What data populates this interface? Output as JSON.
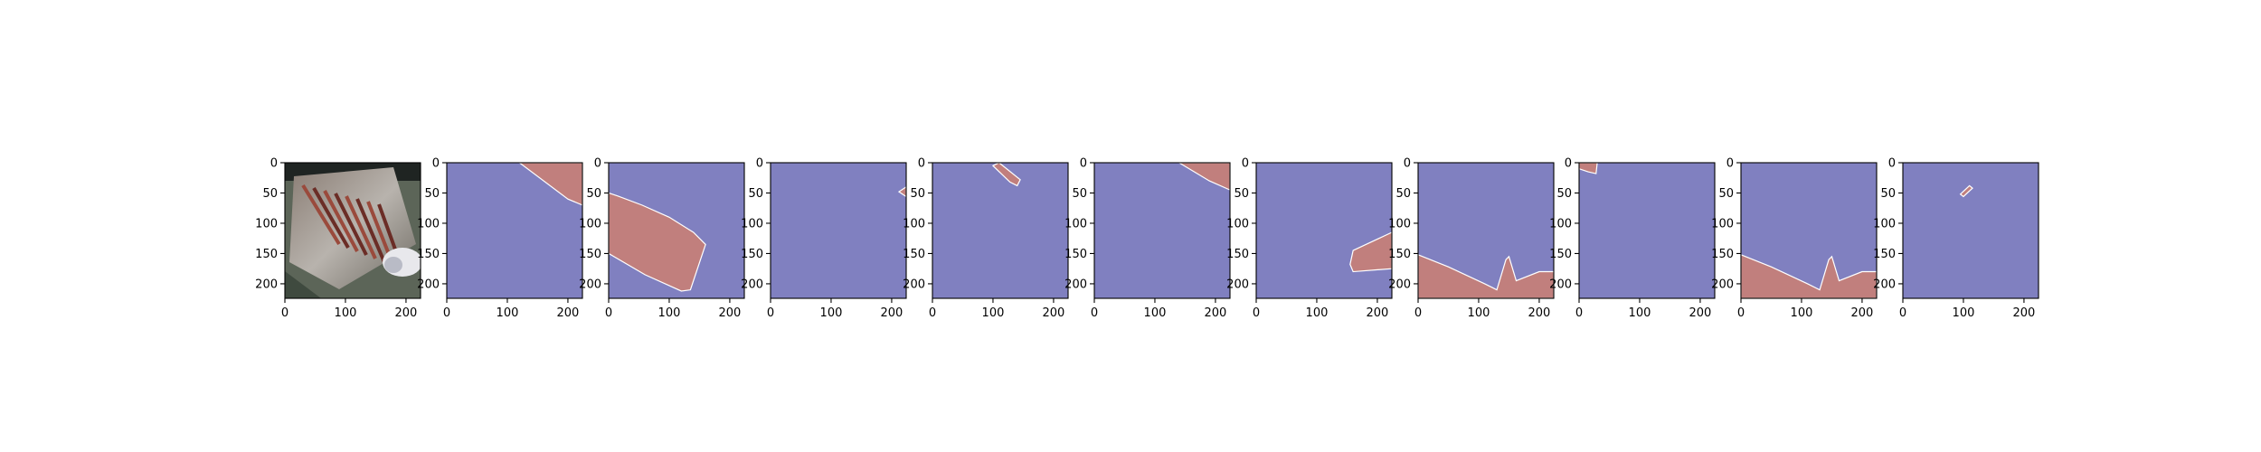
{
  "chart_data": {
    "type": "image-grid",
    "extent": [
      0,
      224
    ],
    "xticks": [
      "0",
      "100",
      "200"
    ],
    "yticks": [
      "0",
      "50",
      "100",
      "150",
      "200"
    ],
    "colors": {
      "background_class": "#8080c0",
      "foreground_class": "#c17f7d",
      "boundary": "#ffffff"
    },
    "panels": [
      {
        "kind": "photo",
        "content": "crushed metal tray with debris and white cup"
      },
      {
        "kind": "mask",
        "regions": [
          [
            [
              120,
              0
            ],
            [
              224,
              0
            ],
            [
              224,
              70
            ],
            [
              200,
              60
            ]
          ]
        ]
      },
      {
        "kind": "mask",
        "regions": [
          [
            [
              0,
              50
            ],
            [
              15,
              55
            ],
            [
              55,
              70
            ],
            [
              100,
              90
            ],
            [
              140,
              115
            ],
            [
              160,
              135
            ],
            [
              150,
              165
            ],
            [
              135,
              210
            ],
            [
              120,
              212
            ],
            [
              60,
              185
            ],
            [
              0,
              150
            ]
          ]
        ]
      },
      {
        "kind": "mask",
        "regions": [
          [
            [
              212,
              48
            ],
            [
              224,
              40
            ],
            [
              224,
              56
            ]
          ]
        ]
      },
      {
        "kind": "mask",
        "regions": [
          [
            [
              100,
              5
            ],
            [
              110,
              0
            ],
            [
              145,
              28
            ],
            [
              140,
              38
            ],
            [
              128,
              32
            ]
          ]
        ]
      },
      {
        "kind": "mask",
        "regions": [
          [
            [
              140,
              0
            ],
            [
              224,
              0
            ],
            [
              224,
              45
            ],
            [
              190,
              30
            ]
          ]
        ]
      },
      {
        "kind": "mask",
        "regions": [
          [
            [
              160,
              145
            ],
            [
              224,
              115
            ],
            [
              224,
              175
            ],
            [
              160,
              180
            ],
            [
              155,
              168
            ]
          ]
        ]
      },
      {
        "kind": "mask",
        "regions": [
          [
            [
              0,
              152
            ],
            [
              50,
              172
            ],
            [
              110,
              200
            ],
            [
              130,
              210
            ],
            [
              145,
              160
            ],
            [
              150,
              155
            ],
            [
              162,
              195
            ],
            [
              200,
              180
            ],
            [
              224,
              180
            ],
            [
              224,
              224
            ],
            [
              0,
              224
            ]
          ]
        ]
      },
      {
        "kind": "mask",
        "regions": [
          [
            [
              0,
              0
            ],
            [
              30,
              0
            ],
            [
              28,
              18
            ],
            [
              15,
              15
            ],
            [
              0,
              10
            ]
          ]
        ]
      },
      {
        "kind": "mask",
        "regions": [
          [
            [
              0,
              152
            ],
            [
              50,
              172
            ],
            [
              110,
              200
            ],
            [
              130,
              210
            ],
            [
              145,
              160
            ],
            [
              150,
              155
            ],
            [
              162,
              195
            ],
            [
              200,
              180
            ],
            [
              224,
              180
            ],
            [
              224,
              224
            ],
            [
              0,
              224
            ]
          ]
        ]
      },
      {
        "kind": "mask",
        "regions": [
          [
            [
              95,
              52
            ],
            [
              110,
              38
            ],
            [
              115,
              42
            ],
            [
              100,
              56
            ]
          ]
        ]
      }
    ]
  }
}
